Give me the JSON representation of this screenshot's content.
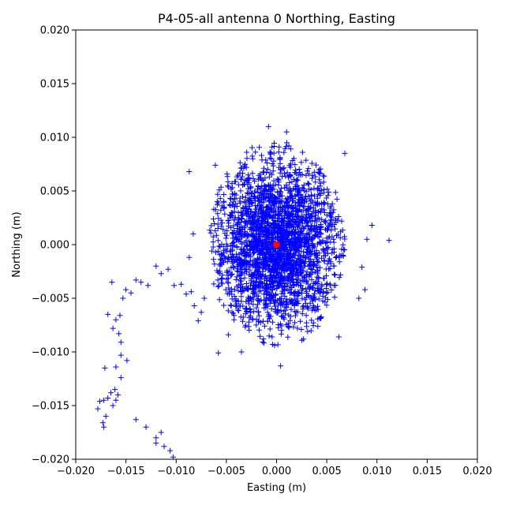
{
  "chart_data": {
    "type": "scatter",
    "title": "P4-05-all antenna 0 Northing, Easting",
    "xlabel": "Easting (m)",
    "ylabel": "Northing (m)",
    "xlim": [
      -0.02,
      0.02
    ],
    "ylim": [
      -0.02,
      0.02
    ],
    "xticks": [
      "−0.020",
      "−0.015",
      "−0.010",
      "−0.005",
      "0.000",
      "0.005",
      "0.010",
      "0.015",
      "0.020"
    ],
    "yticks": [
      "−0.020",
      "−0.015",
      "−0.010",
      "−0.005",
      "0.000",
      "0.005",
      "0.010",
      "0.015",
      "0.020"
    ],
    "grid": false,
    "series": [
      {
        "marker": "+",
        "color": "#0000ff",
        "cluster": {
          "center": [
            0.0,
            0.0
          ],
          "spread": [
            0.0032,
            0.0038
          ],
          "extent": [
            0.0068,
            0.0098
          ],
          "count": 2600
        },
        "outliers": [
          [
            -0.0178,
            -0.0153
          ],
          [
            -0.0176,
            -0.0146
          ],
          [
            -0.0172,
            -0.0145
          ],
          [
            -0.017,
            -0.016
          ],
          [
            -0.0173,
            -0.0166
          ],
          [
            -0.0172,
            -0.017
          ],
          [
            -0.0168,
            -0.0143
          ],
          [
            -0.0165,
            -0.0138
          ],
          [
            -0.0163,
            -0.015
          ],
          [
            -0.0161,
            -0.0135
          ],
          [
            -0.016,
            -0.0145
          ],
          [
            -0.0158,
            -0.014
          ],
          [
            -0.0155,
            -0.0124
          ],
          [
            -0.016,
            -0.0114
          ],
          [
            -0.0171,
            -0.0115
          ],
          [
            -0.0155,
            -0.0103
          ],
          [
            -0.0149,
            -0.0108
          ],
          [
            -0.0155,
            -0.0091
          ],
          [
            -0.0157,
            -0.0083
          ],
          [
            -0.0163,
            -0.0078
          ],
          [
            -0.0168,
            -0.0065
          ],
          [
            -0.016,
            -0.007
          ],
          [
            -0.0156,
            -0.0066
          ],
          [
            -0.0153,
            -0.005
          ],
          [
            -0.015,
            -0.0042
          ],
          [
            -0.0145,
            -0.0045
          ],
          [
            -0.014,
            -0.0033
          ],
          [
            -0.0135,
            -0.0035
          ],
          [
            -0.0128,
            -0.0038
          ],
          [
            -0.012,
            -0.002
          ],
          [
            -0.0115,
            -0.0027
          ],
          [
            -0.0108,
            -0.0023
          ],
          [
            -0.0102,
            -0.0038
          ],
          [
            -0.0095,
            -0.0037
          ],
          [
            -0.009,
            -0.0046
          ],
          [
            -0.0085,
            -0.0044
          ],
          [
            -0.0087,
            -0.0012
          ],
          [
            -0.0082,
            -0.0057
          ],
          [
            -0.0078,
            -0.0071
          ],
          [
            -0.0075,
            -0.0063
          ],
          [
            -0.0072,
            -0.005
          ],
          [
            -0.0164,
            -0.0035
          ],
          [
            -0.014,
            -0.0163
          ],
          [
            -0.013,
            -0.017
          ],
          [
            -0.012,
            -0.018
          ],
          [
            -0.0115,
            -0.0175
          ],
          [
            -0.0112,
            -0.0188
          ],
          [
            -0.0106,
            -0.0192
          ],
          [
            -0.0103,
            -0.0198
          ],
          [
            -0.012,
            -0.0185
          ],
          [
            -0.0087,
            0.0068
          ],
          [
            -0.0083,
            0.001
          ],
          [
            0.0112,
            0.0004
          ],
          [
            0.0095,
            0.0018
          ],
          [
            0.0085,
            -0.0021
          ],
          [
            0.0088,
            -0.0042
          ],
          [
            0.0082,
            -0.005
          ],
          [
            0.009,
            0.0005
          ],
          [
            0.0004,
            -0.0113
          ],
          [
            -0.0035,
            -0.01
          ],
          [
            -0.0058,
            -0.0101
          ],
          [
            -0.0008,
            0.011
          ],
          [
            0.001,
            0.0105
          ],
          [
            -0.0061,
            0.0074
          ],
          [
            0.0068,
            0.0085
          ],
          [
            0.0062,
            -0.0086
          ],
          [
            -0.0048,
            -0.0084
          ]
        ]
      },
      {
        "marker": "o",
        "color": "#ff0000",
        "points": [
          [
            0.0,
            0.0
          ]
        ]
      }
    ]
  }
}
